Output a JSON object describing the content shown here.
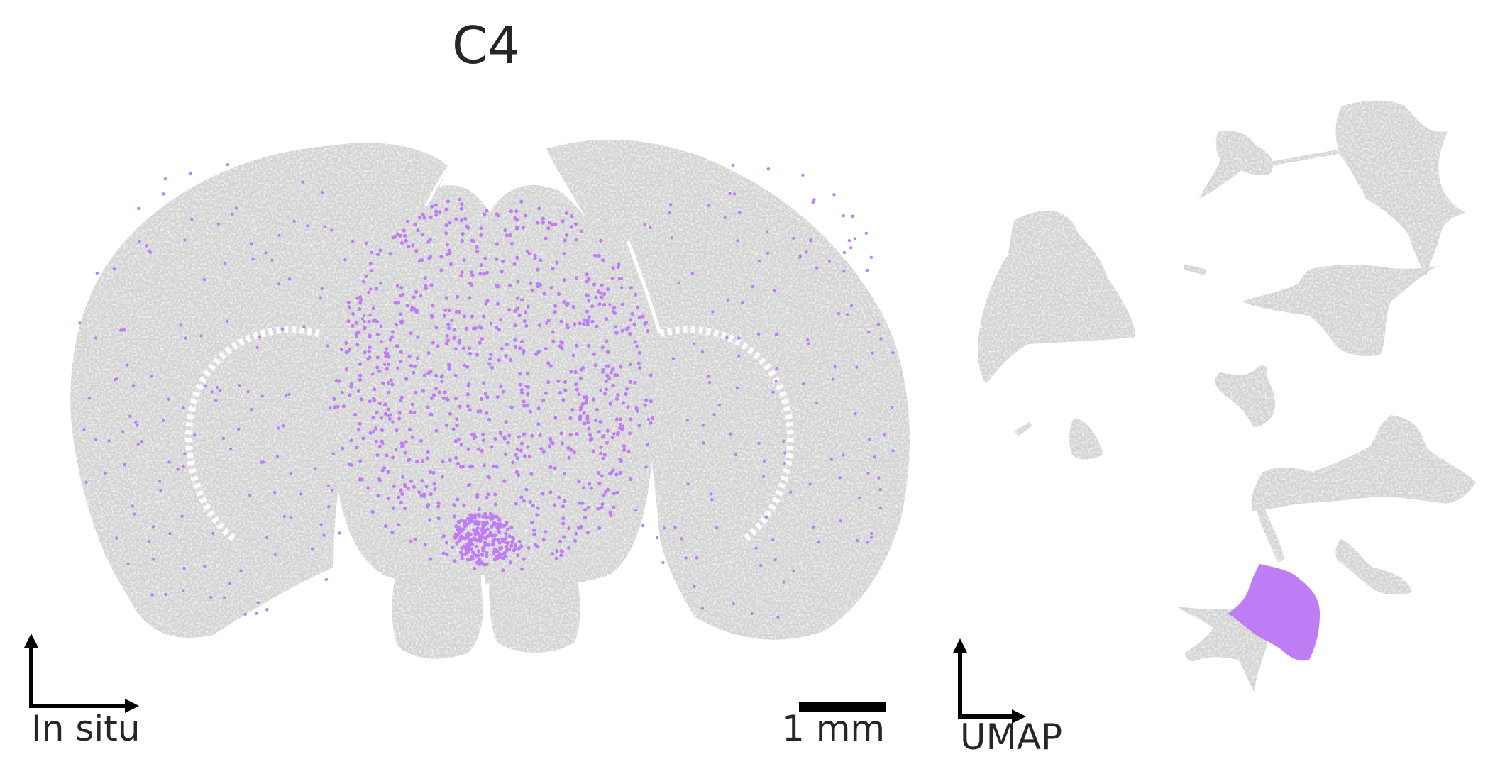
{
  "figure": {
    "title": "C4",
    "in_situ_label": "In situ",
    "scale_bar_label": "1 mm",
    "umap_label": "UMAP"
  },
  "colors": {
    "background_cells": "#d3d3d3",
    "highlight_cells": "#bf7df5",
    "axes": "#000000",
    "text": "#262626"
  }
}
